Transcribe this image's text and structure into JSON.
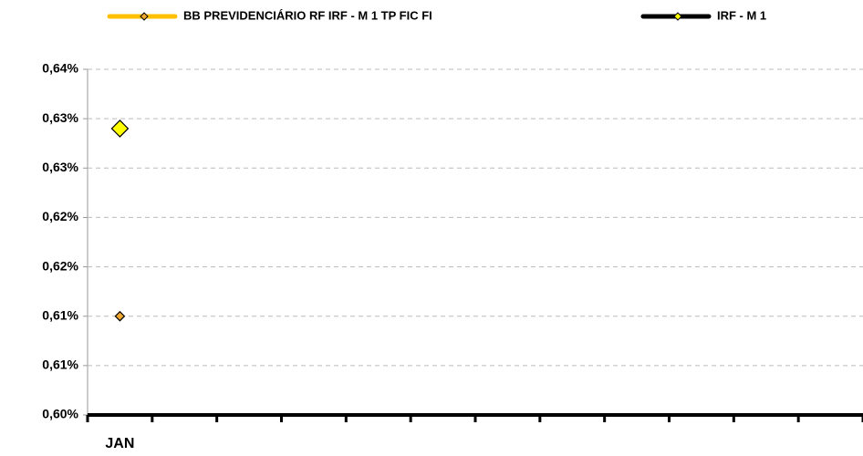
{
  "chart_data": {
    "type": "line",
    "categories": [
      "JAN",
      null,
      null,
      null,
      null,
      null,
      null,
      null,
      null,
      null,
      null,
      null
    ],
    "series": [
      {
        "name": "BB PREVIDENCIÁRIO RF IRF - M 1 TP FIC FI",
        "color": "#FFC000",
        "marker_color": "#F0A830",
        "values": [
          0.61,
          null,
          null,
          null,
          null,
          null,
          null,
          null,
          null,
          null,
          null,
          null
        ]
      },
      {
        "name": "IRF - M 1",
        "color": "#000000",
        "marker_color": "#FFFF00",
        "values": [
          0.629,
          null,
          null,
          null,
          null,
          null,
          null,
          null,
          null,
          null,
          null,
          null
        ]
      }
    ],
    "ylim": [
      0.6,
      0.635
    ],
    "yticks": [
      {
        "value": 0.6,
        "label": "0,60%"
      },
      {
        "value": 0.605,
        "label": "0,61%"
      },
      {
        "value": 0.61,
        "label": "0,61%"
      },
      {
        "value": 0.615,
        "label": "0,62%"
      },
      {
        "value": 0.62,
        "label": "0,62%"
      },
      {
        "value": 0.625,
        "label": "0,63%"
      },
      {
        "value": 0.63,
        "label": "0,63%"
      },
      {
        "value": 0.635,
        "label": "0,64%"
      }
    ],
    "grid": true,
    "legend": "top"
  }
}
